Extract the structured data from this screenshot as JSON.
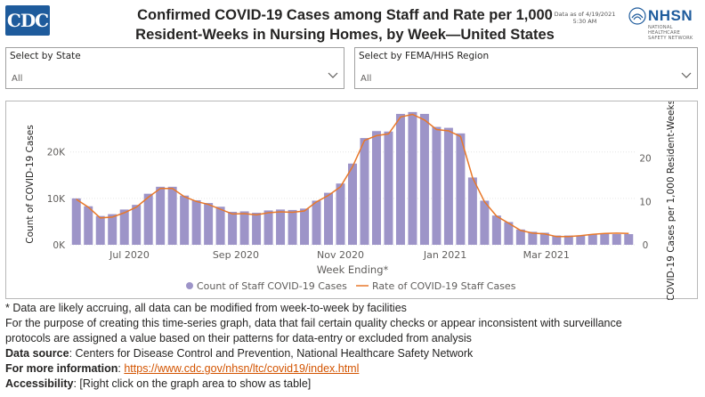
{
  "header": {
    "logo_text": "CDC",
    "title_line1": "Confirmed COVID-19 Cases among Staff and Rate per 1,000",
    "title_line2": "Resident-Weeks in Nursing Homes, by Week—United States",
    "data_as_of": "Data as of 4/19/2021",
    "data_time": "5:30 AM",
    "nhsn_name": "NHSN",
    "nhsn_sub1": "NATIONAL HEALTHCARE",
    "nhsn_sub2": "SAFETY NETWORK"
  },
  "filters": {
    "state": {
      "label": "Select by State",
      "value": "All"
    },
    "region": {
      "label": "Select by FEMA/HHS Region",
      "value": "All"
    }
  },
  "chart_data": {
    "type": "bar",
    "title": "",
    "xlabel": "Week Ending*",
    "ylabel": "Count of COVID-19 Cases",
    "y2label": "COVID-19 Cases per 1,000 Resident-Weeks",
    "ylim": [
      0,
      28000
    ],
    "y2lim": [
      0,
      30
    ],
    "yticks": [
      "0K",
      "10K",
      "20K"
    ],
    "y2ticks": [
      "0",
      "10",
      "20"
    ],
    "xtick_labels": [
      "Jul 2020",
      "Sep 2020",
      "Nov 2020",
      "Jan 2021",
      "Mar 2021"
    ],
    "xtick_positions": [
      "2020-07-01",
      "2020-09-01",
      "2020-11-01",
      "2021-01-01",
      "2021-03-01"
    ],
    "x": [
      "2020-05-31",
      "2020-06-07",
      "2020-06-14",
      "2020-06-21",
      "2020-06-28",
      "2020-07-05",
      "2020-07-12",
      "2020-07-19",
      "2020-07-26",
      "2020-08-02",
      "2020-08-09",
      "2020-08-16",
      "2020-08-23",
      "2020-08-30",
      "2020-09-06",
      "2020-09-13",
      "2020-09-20",
      "2020-09-27",
      "2020-10-04",
      "2020-10-11",
      "2020-10-18",
      "2020-10-25",
      "2020-11-01",
      "2020-11-08",
      "2020-11-15",
      "2020-11-22",
      "2020-11-29",
      "2020-12-06",
      "2020-12-13",
      "2020-12-20",
      "2020-12-27",
      "2021-01-03",
      "2021-01-10",
      "2021-01-17",
      "2021-01-24",
      "2021-01-31",
      "2021-02-07",
      "2021-02-14",
      "2021-02-21",
      "2021-02-28",
      "2021-03-07",
      "2021-03-14",
      "2021-03-21",
      "2021-03-28",
      "2021-04-04",
      "2021-04-11",
      "2021-04-18"
    ],
    "series": [
      {
        "name": "Count of Staff COVID-19 Cases",
        "type": "bar",
        "color": "#9d94c8",
        "values": [
          10000,
          8300,
          6200,
          6600,
          7600,
          8600,
          11000,
          12500,
          12500,
          10600,
          9600,
          9000,
          8200,
          7100,
          7200,
          6900,
          7400,
          7600,
          7500,
          7800,
          9500,
          11200,
          13200,
          17500,
          23000,
          24500,
          24400,
          28200,
          28600,
          28200,
          25400,
          25200,
          24000,
          14500,
          9500,
          6300,
          4900,
          3300,
          2800,
          2600,
          2000,
          2000,
          2000,
          2300,
          2400,
          2300,
          2300
        ],
        "axis": "left"
      },
      {
        "name": "Rate of COVID-19 Staff Cases",
        "type": "line",
        "color": "#e8782a",
        "values": [
          10.5,
          8.7,
          6.2,
          6.4,
          7.4,
          8.7,
          11,
          13,
          13,
          11.1,
          10,
          9.3,
          8.2,
          7.1,
          7.2,
          6.9,
          7.4,
          7.6,
          7.5,
          7.8,
          9.9,
          11.4,
          13.4,
          18,
          24.1,
          25.2,
          25.6,
          29.5,
          30.1,
          28.8,
          26.6,
          26.3,
          25,
          15.5,
          9.9,
          6.6,
          5,
          3.3,
          2.7,
          2.5,
          1.9,
          1.9,
          2.1,
          2.4,
          2.6,
          2.7,
          2.6
        ],
        "axis": "right"
      }
    ],
    "legend_position": "bottom",
    "grid": true
  },
  "footnotes": {
    "line1": "* Data are likely accruing, all data can be modified from week-to-week by facilities",
    "line2": "For the purpose of creating this time-series graph, data that fail certain quality checks or appear inconsistent with surveillance",
    "line3": "protocols are assigned a value based on their patterns for data-entry or excluded from analysis",
    "source_label": "Data source",
    "source_text": ": Centers for Disease Control and Prevention, National Healthcare Safety Network",
    "info_label": "For more information",
    "info_sep": ": ",
    "info_link": "https://www.cdc.gov/nhsn/ltc/covid19/index.html",
    "access_label": "Accessibility",
    "access_text": ": [Right click on the graph area to show as table]"
  },
  "colors": {
    "brand_blue": "#1e5b9c",
    "bar": "#9d94c8",
    "line": "#e8782a",
    "link": "#d35400"
  }
}
